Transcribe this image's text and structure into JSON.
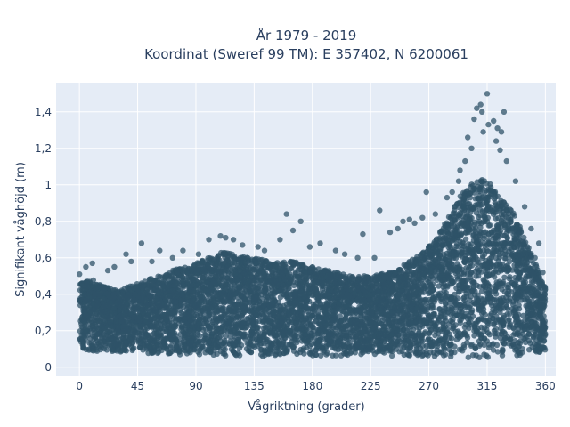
{
  "chart_data": {
    "type": "scatter",
    "title": "År 1979 - 2019",
    "subtitle": "Koordinat (Sweref 99 TM): E 357402, N 6200061",
    "xlabel": "Vågriktning (grader)",
    "ylabel": "Signifikant våghöjd (m)",
    "xlim": [
      -18,
      368
    ],
    "ylim": [
      -0.05,
      1.56
    ],
    "xticks": [
      0,
      45,
      90,
      135,
      180,
      225,
      270,
      315,
      360
    ],
    "xtick_labels": [
      "0",
      "45",
      "90",
      "135",
      "180",
      "225",
      "270",
      "315",
      "360"
    ],
    "yticks": [
      0,
      0.2,
      0.4,
      0.6,
      0.8,
      1.0,
      1.2,
      1.4
    ],
    "ytick_labels": [
      "0",
      "0,2",
      "0,4",
      "0,6",
      "0,8",
      "1",
      "1,2",
      "1,4"
    ],
    "grid": true,
    "colors": {
      "marker": "#2f5368",
      "plot_bg": "#e5ecf6",
      "grid": "#ffffff",
      "text": "#2a3f5f"
    },
    "envelope": {
      "x": [
        0,
        10,
        20,
        30,
        45,
        60,
        75,
        90,
        100,
        110,
        120,
        135,
        150,
        165,
        180,
        195,
        210,
        225,
        240,
        255,
        265,
        275,
        285,
        295,
        305,
        312,
        318,
        325,
        335,
        345,
        355,
        360
      ],
      "y_min": [
        0.08,
        0.08,
        0.08,
        0.08,
        0.08,
        0.07,
        0.07,
        0.06,
        0.06,
        0.06,
        0.06,
        0.06,
        0.06,
        0.06,
        0.06,
        0.06,
        0.06,
        0.06,
        0.06,
        0.06,
        0.06,
        0.06,
        0.06,
        0.05,
        0.05,
        0.05,
        0.05,
        0.06,
        0.06,
        0.07,
        0.08,
        0.08
      ],
      "y_max": [
        0.46,
        0.48,
        0.44,
        0.42,
        0.46,
        0.5,
        0.54,
        0.57,
        0.6,
        0.63,
        0.62,
        0.6,
        0.58,
        0.58,
        0.55,
        0.53,
        0.5,
        0.5,
        0.52,
        0.58,
        0.63,
        0.7,
        0.82,
        0.95,
        1.02,
        1.05,
        1.0,
        0.93,
        0.85,
        0.7,
        0.52,
        0.46
      ]
    },
    "outliers": [
      {
        "x": 315,
        "y": 1.5
      },
      {
        "x": 310,
        "y": 1.44
      },
      {
        "x": 307,
        "y": 1.42
      },
      {
        "x": 311,
        "y": 1.4
      },
      {
        "x": 328,
        "y": 1.4
      },
      {
        "x": 320,
        "y": 1.35
      },
      {
        "x": 316,
        "y": 1.33
      },
      {
        "x": 305,
        "y": 1.36
      },
      {
        "x": 323,
        "y": 1.31
      },
      {
        "x": 312,
        "y": 1.29
      },
      {
        "x": 326,
        "y": 1.29
      },
      {
        "x": 300,
        "y": 1.26
      },
      {
        "x": 303,
        "y": 1.2
      },
      {
        "x": 322,
        "y": 1.24
      },
      {
        "x": 325,
        "y": 1.19
      },
      {
        "x": 298,
        "y": 1.13
      },
      {
        "x": 330,
        "y": 1.13
      },
      {
        "x": 294,
        "y": 1.08
      },
      {
        "x": 293,
        "y": 1.02
      },
      {
        "x": 337,
        "y": 1.02
      },
      {
        "x": 288,
        "y": 0.96
      },
      {
        "x": 284,
        "y": 0.93
      },
      {
        "x": 344,
        "y": 0.88
      },
      {
        "x": 349,
        "y": 0.76
      },
      {
        "x": 355,
        "y": 0.68
      },
      {
        "x": 268,
        "y": 0.96
      },
      {
        "x": 275,
        "y": 0.84
      },
      {
        "x": 265,
        "y": 0.82
      },
      {
        "x": 259,
        "y": 0.79
      },
      {
        "x": 255,
        "y": 0.81
      },
      {
        "x": 250,
        "y": 0.8
      },
      {
        "x": 232,
        "y": 0.86
      },
      {
        "x": 246,
        "y": 0.76
      },
      {
        "x": 240,
        "y": 0.74
      },
      {
        "x": 219,
        "y": 0.73
      },
      {
        "x": 160,
        "y": 0.84
      },
      {
        "x": 171,
        "y": 0.8
      },
      {
        "x": 165,
        "y": 0.75
      },
      {
        "x": 155,
        "y": 0.7
      },
      {
        "x": 109,
        "y": 0.72
      },
      {
        "x": 113,
        "y": 0.71
      },
      {
        "x": 119,
        "y": 0.7
      },
      {
        "x": 100,
        "y": 0.7
      },
      {
        "x": 126,
        "y": 0.67
      },
      {
        "x": 138,
        "y": 0.66
      },
      {
        "x": 186,
        "y": 0.68
      },
      {
        "x": 198,
        "y": 0.64
      },
      {
        "x": 205,
        "y": 0.62
      },
      {
        "x": 48,
        "y": 0.68
      },
      {
        "x": 62,
        "y": 0.64
      },
      {
        "x": 80,
        "y": 0.64
      },
      {
        "x": 36,
        "y": 0.62
      },
      {
        "x": 40,
        "y": 0.58
      },
      {
        "x": 27,
        "y": 0.55
      },
      {
        "x": 10,
        "y": 0.57
      },
      {
        "x": 5,
        "y": 0.55
      },
      {
        "x": 22,
        "y": 0.53
      },
      {
        "x": 56,
        "y": 0.58
      },
      {
        "x": 72,
        "y": 0.6
      },
      {
        "x": 92,
        "y": 0.62
      },
      {
        "x": 143,
        "y": 0.64
      },
      {
        "x": 178,
        "y": 0.66
      },
      {
        "x": 215,
        "y": 0.6
      },
      {
        "x": 228,
        "y": 0.6
      },
      {
        "x": 0,
        "y": 0.51
      },
      {
        "x": 358,
        "y": 0.52
      },
      {
        "x": 352,
        "y": 0.6
      }
    ]
  }
}
